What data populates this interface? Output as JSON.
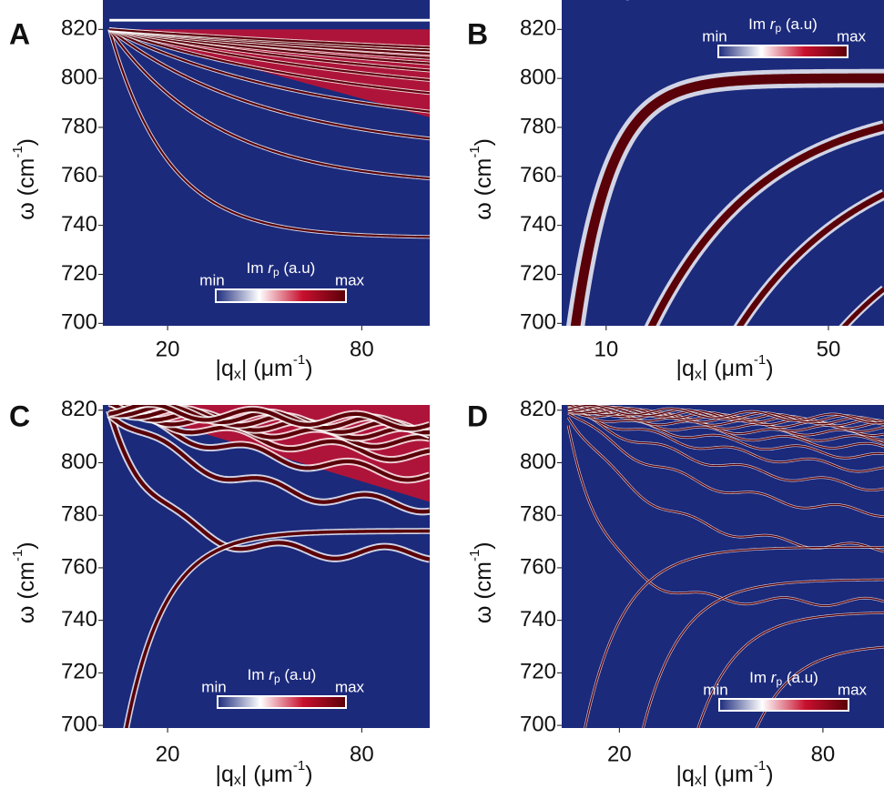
{
  "chart_data": [
    {
      "type": "heatmap",
      "panel": "A",
      "x_label": [
        "|q",
        "x",
        "| (μm",
        "-1",
        ")"
      ],
      "y_label": [
        "ω (cm",
        "-1",
        ")"
      ],
      "xlim": [
        0,
        101
      ],
      "ylim": [
        699,
        832
      ],
      "xticks": [
        20,
        80
      ],
      "yticks": [
        700,
        720,
        740,
        760,
        780,
        800,
        820
      ],
      "colorbar": {
        "title": [
          "Im ",
          "r",
          "p",
          " (a.u)"
        ],
        "min_label": "min",
        "max_label": "max",
        "colors": [
          "#1c2a7c",
          "#ffffff",
          "#c8102e",
          "#5a0008"
        ]
      }
    },
    {
      "type": "heatmap",
      "panel": "B",
      "x_label": [
        "|q",
        "x",
        "| (μm",
        "-1",
        ")"
      ],
      "y_label": [
        "ω (cm",
        "-1",
        ")"
      ],
      "xlim": [
        2,
        60
      ],
      "ylim": [
        699,
        832
      ],
      "xticks": [
        10,
        50
      ],
      "yticks": [
        700,
        720,
        740,
        760,
        780,
        800,
        820
      ],
      "colorbar": {
        "title": [
          "Im ",
          "r",
          "p",
          " (a.u)"
        ],
        "min_label": "min",
        "max_label": "max",
        "colors": [
          "#1c2a7c",
          "#ffffff",
          "#c8102e",
          "#5a0008"
        ]
      }
    },
    {
      "type": "heatmap",
      "panel": "C",
      "x_label": [
        "|q",
        "x",
        "| (μm",
        "-1",
        ")"
      ],
      "y_label": [
        "ω (cm",
        "-1",
        ")"
      ],
      "xlim": [
        0,
        101
      ],
      "ylim": [
        699,
        822
      ],
      "xticks": [
        20,
        80
      ],
      "yticks": [
        700,
        720,
        740,
        760,
        780,
        800,
        820
      ],
      "colorbar": {
        "title": [
          "Im ",
          "r",
          "p",
          " (a.u)"
        ],
        "min_label": "min",
        "max_label": "max",
        "colors": [
          "#1c2a7c",
          "#ffffff",
          "#c8102e",
          "#5a0008"
        ]
      }
    },
    {
      "type": "heatmap",
      "panel": "D",
      "x_label": [
        "|q",
        "x",
        "| (μm",
        "-1",
        ")"
      ],
      "y_label": [
        "ω (cm",
        "-1",
        ")"
      ],
      "xlim": [
        3,
        98
      ],
      "ylim": [
        699,
        822
      ],
      "xticks": [
        20,
        80
      ],
      "yticks": [
        700,
        720,
        740,
        760,
        780,
        800,
        820
      ],
      "colorbar": {
        "title": [
          "Im ",
          "r",
          "p",
          " (a.u)"
        ],
        "min_label": "min",
        "max_label": "max",
        "colors": [
          "#1c2a7c",
          "#ffffff",
          "#c8102e",
          "#5a0008"
        ]
      }
    }
  ]
}
